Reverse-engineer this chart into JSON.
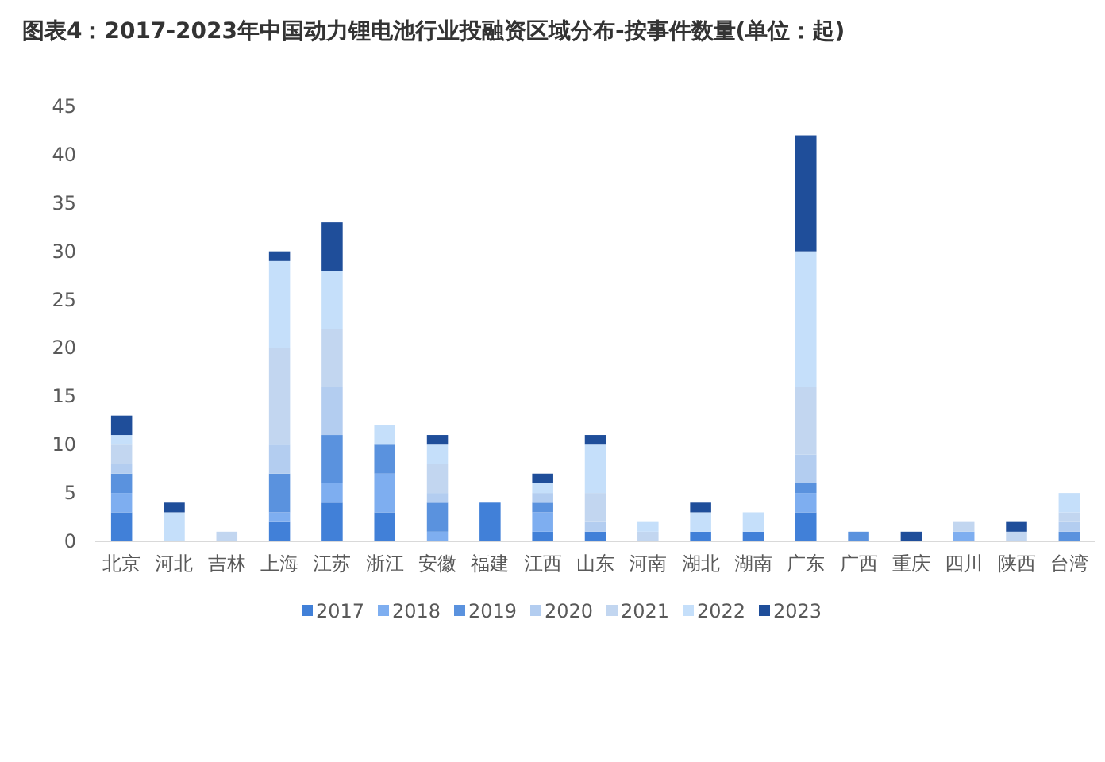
{
  "chart_data": {
    "type": "bar",
    "stacked": true,
    "title": "图表4：2017-2023年中国动力锂电池行业投融资区域分布-按事件数量(单位：起)",
    "categories": [
      "北京",
      "河北",
      "吉林",
      "上海",
      "江苏",
      "浙江",
      "安徽",
      "福建",
      "江西",
      "山东",
      "河南",
      "湖北",
      "湖南",
      "广东",
      "广西",
      "重庆",
      "四川",
      "陕西",
      "台湾"
    ],
    "series": [
      {
        "name": "2017",
        "color": "#4180d8",
        "values": [
          3,
          0,
          0,
          2,
          4,
          3,
          0,
          4,
          1,
          1,
          0,
          1,
          1,
          3,
          0,
          0,
          0,
          0,
          0
        ]
      },
      {
        "name": "2018",
        "color": "#7eaef0",
        "values": [
          2,
          0,
          0,
          1,
          2,
          4,
          1,
          0,
          2,
          0,
          0,
          0,
          0,
          2,
          0,
          0,
          1,
          0,
          0
        ]
      },
      {
        "name": "2019",
        "color": "#5a92de",
        "values": [
          2,
          0,
          0,
          4,
          5,
          3,
          3,
          0,
          1,
          0,
          0,
          0,
          0,
          1,
          1,
          0,
          0,
          0,
          1
        ]
      },
      {
        "name": "2020",
        "color": "#b3cdf0",
        "values": [
          1,
          0,
          0,
          3,
          5,
          0,
          1,
          0,
          1,
          1,
          0,
          0,
          0,
          3,
          0,
          0,
          0,
          0,
          1
        ]
      },
      {
        "name": "2021",
        "color": "#c2d6f0",
        "values": [
          2,
          0,
          1,
          10,
          6,
          0,
          3,
          0,
          0,
          3,
          1,
          0,
          0,
          7,
          0,
          0,
          1,
          1,
          1
        ]
      },
      {
        "name": "2022",
        "color": "#c5dffa",
        "values": [
          1,
          3,
          0,
          9,
          6,
          2,
          2,
          0,
          1,
          5,
          1,
          2,
          2,
          14,
          0,
          0,
          0,
          0,
          2
        ]
      },
      {
        "name": "2023",
        "color": "#1f4e9a",
        "values": [
          2,
          1,
          0,
          1,
          5,
          0,
          1,
          0,
          1,
          1,
          0,
          1,
          0,
          12,
          0,
          1,
          0,
          1,
          0
        ]
      }
    ],
    "ylim": [
      0,
      45
    ],
    "yticks": [
      0,
      5,
      10,
      15,
      20,
      25,
      30,
      35,
      40,
      45
    ],
    "grid": false,
    "legend": "bottom"
  }
}
